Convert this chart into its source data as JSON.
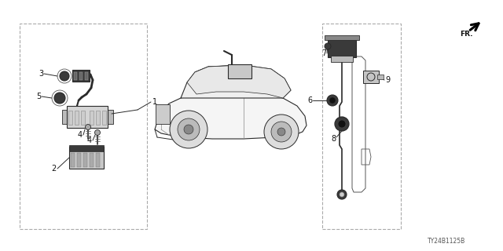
{
  "bg_color": "#ffffff",
  "fig_width": 6.4,
  "fig_height": 3.2,
  "dpi": 100,
  "diagram_code": "TY24B1125B",
  "line_color": "#2a2a2a",
  "dark_fill": "#3a3a3a",
  "mid_fill": "#888888",
  "light_fill": "#cccccc",
  "box_dash_color": "#aaaaaa",
  "label_fs": 7.0,
  "code_fs": 5.5
}
